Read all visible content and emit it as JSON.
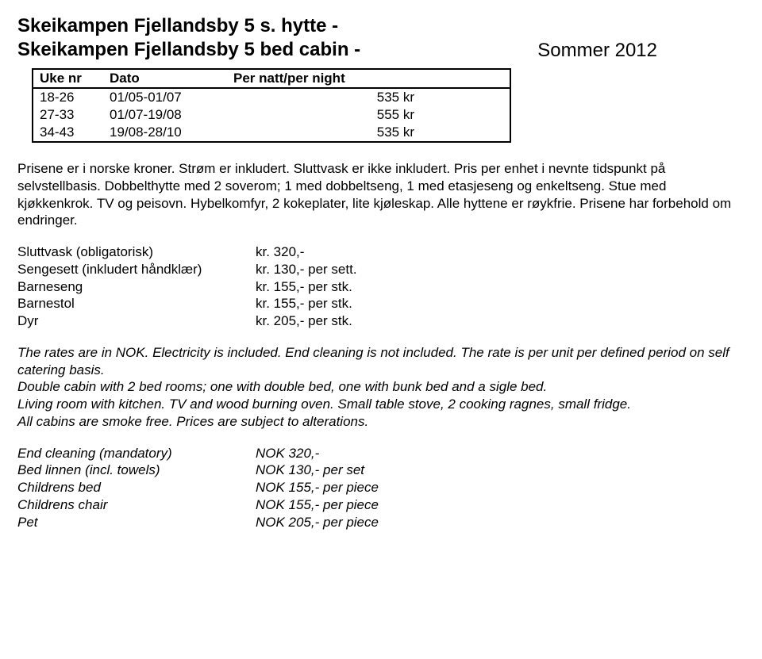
{
  "header": {
    "title_line1": "Skeikampen Fjellandsby 5 s. hytte -",
    "title_line2": "Skeikampen Fjellandsby 5 bed cabin -",
    "season": "Sommer 2012"
  },
  "table": {
    "columns": [
      "Uke nr",
      "Dato",
      "Per natt/per night"
    ],
    "rows": [
      [
        "18-26",
        "01/05-01/07",
        "535 kr"
      ],
      [
        "27-33",
        "01/07-19/08",
        "555 kr"
      ],
      [
        "34-43",
        "19/08-28/10",
        "535 kr"
      ]
    ]
  },
  "nor_text": "Prisene er i norske kroner. Strøm er inkludert. Sluttvask er ikke inkludert. Pris per enhet i nevnte tidspunkt på selvstellbasis. Dobbelthytte med 2 soverom; 1 med dobbeltseng, 1 med etasjeseng og enkeltseng. Stue med kjøkkenkrok. TV og peisovn. Hybelkomfyr, 2 kokeplater, lite kjøleskap. Alle hyttene er røykfrie. Prisene har forbehold om endringer.",
  "nor_extras": [
    {
      "label": "Sluttvask (obligatorisk)",
      "value": "kr. 320,-"
    },
    {
      "label": "Sengesett (inkludert håndklær)",
      "value": "kr. 130,- per sett."
    },
    {
      "label": "Barneseng",
      "value": "kr. 155,- per stk."
    },
    {
      "label": "Barnestol",
      "value": "kr. 155,- per stk."
    },
    {
      "label": "Dyr",
      "value": "kr. 205,- per stk."
    }
  ],
  "eng_text_lines": [
    "The rates are in NOK. Electricity is included. End cleaning is not included. The rate is per unit per defined period on self catering basis.",
    "Double cabin with 2 bed rooms; one with double bed, one with bunk bed and a sigle bed.",
    "Living room with kitchen. TV and wood burning oven. Small table stove, 2 cooking ragnes, small fridge.",
    "All cabins are smoke free. Prices are subject to alterations."
  ],
  "eng_extras": [
    {
      "label": "End cleaning (mandatory)",
      "value": "NOK 320,-"
    },
    {
      "label": "Bed linnen (incl. towels)",
      "value": "NOK 130,- per set"
    },
    {
      "label": "Childrens bed",
      "value": "NOK 155,- per piece"
    },
    {
      "label": "Childrens chair",
      "value": "NOK 155,- per piece"
    },
    {
      "label": "Pet",
      "value": "NOK 205,- per piece"
    }
  ]
}
